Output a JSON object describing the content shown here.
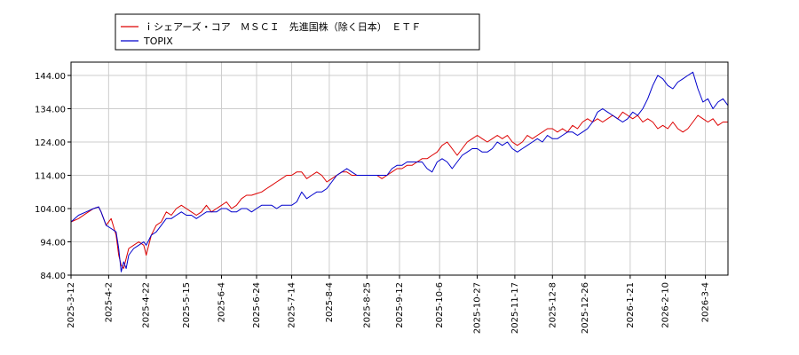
{
  "chart_data": {
    "type": "line",
    "title": "",
    "xlabel": "",
    "ylabel": "",
    "ylim": [
      84,
      148
    ],
    "y_ticks": [
      "84.00",
      "94.00",
      "104.00",
      "114.00",
      "124.00",
      "134.00",
      "144.00"
    ],
    "y_tick_values": [
      84,
      94,
      104,
      114,
      124,
      134,
      144
    ],
    "x_ticks": [
      "2025-3-12",
      "2025-4-2",
      "2025-4-22",
      "2025-5-15",
      "2025-6-4",
      "2025-6-24",
      "2025-7-14",
      "2025-8-4",
      "2025-8-25",
      "2025-9-12",
      "2025-10-6",
      "2025-10-27",
      "2025-11-17",
      "2025-12-8",
      "2025-12-26",
      "2026-1-21",
      "2026-2-10",
      "2026-3-4"
    ],
    "x_tick_positions": [
      0,
      15,
      30,
      46,
      60,
      74,
      88,
      103,
      118,
      131,
      147,
      162,
      177,
      192,
      205,
      223,
      237,
      253
    ],
    "x_max": 262,
    "grid": true,
    "legend_position": "top-left",
    "series": [
      {
        "name": "ｉシェアーズ・コア　ＭＳＣＩ　先進国株（除く日本）　ＥＴＦ",
        "color": "#dd0000",
        "points": [
          [
            0,
            100
          ],
          [
            3,
            101
          ],
          [
            6,
            102.5
          ],
          [
            9,
            104
          ],
          [
            11,
            104.5
          ],
          [
            12,
            103
          ],
          [
            14,
            99
          ],
          [
            16,
            101
          ],
          [
            18,
            96
          ],
          [
            19,
            90
          ],
          [
            20,
            87
          ],
          [
            21,
            86
          ],
          [
            22,
            89
          ],
          [
            23,
            92
          ],
          [
            25,
            93
          ],
          [
            27,
            94
          ],
          [
            29,
            93
          ],
          [
            30,
            90
          ],
          [
            32,
            96
          ],
          [
            34,
            99
          ],
          [
            36,
            100
          ],
          [
            38,
            103
          ],
          [
            40,
            102
          ],
          [
            42,
            104
          ],
          [
            44,
            105
          ],
          [
            46,
            104
          ],
          [
            48,
            103
          ],
          [
            50,
            102
          ],
          [
            52,
            103
          ],
          [
            54,
            105
          ],
          [
            56,
            103
          ],
          [
            58,
            104
          ],
          [
            60,
            105
          ],
          [
            62,
            106
          ],
          [
            64,
            104
          ],
          [
            66,
            105
          ],
          [
            68,
            107
          ],
          [
            70,
            108
          ],
          [
            72,
            108
          ],
          [
            74,
            108.5
          ],
          [
            76,
            109
          ],
          [
            78,
            110
          ],
          [
            80,
            111
          ],
          [
            82,
            112
          ],
          [
            84,
            113
          ],
          [
            86,
            114
          ],
          [
            88,
            114
          ],
          [
            90,
            115
          ],
          [
            92,
            115
          ],
          [
            94,
            113
          ],
          [
            96,
            114
          ],
          [
            98,
            115
          ],
          [
            100,
            114
          ],
          [
            102,
            112
          ],
          [
            104,
            113
          ],
          [
            106,
            114
          ],
          [
            108,
            115
          ],
          [
            110,
            115
          ],
          [
            112,
            114
          ],
          [
            114,
            114
          ],
          [
            116,
            114
          ],
          [
            118,
            114
          ],
          [
            120,
            114
          ],
          [
            122,
            114
          ],
          [
            124,
            113
          ],
          [
            126,
            114
          ],
          [
            128,
            115
          ],
          [
            130,
            116
          ],
          [
            132,
            116
          ],
          [
            134,
            117
          ],
          [
            136,
            117
          ],
          [
            138,
            118
          ],
          [
            140,
            119
          ],
          [
            142,
            119
          ],
          [
            144,
            120
          ],
          [
            146,
            121
          ],
          [
            148,
            123
          ],
          [
            150,
            124
          ],
          [
            152,
            122
          ],
          [
            154,
            120
          ],
          [
            156,
            122
          ],
          [
            158,
            124
          ],
          [
            160,
            125
          ],
          [
            162,
            126
          ],
          [
            164,
            125
          ],
          [
            166,
            124
          ],
          [
            168,
            125
          ],
          [
            170,
            126
          ],
          [
            172,
            125
          ],
          [
            174,
            126
          ],
          [
            176,
            124
          ],
          [
            178,
            123
          ],
          [
            180,
            124
          ],
          [
            182,
            126
          ],
          [
            184,
            125
          ],
          [
            186,
            126
          ],
          [
            188,
            127
          ],
          [
            190,
            128
          ],
          [
            192,
            128
          ],
          [
            194,
            127
          ],
          [
            196,
            128
          ],
          [
            198,
            127
          ],
          [
            200,
            129
          ],
          [
            202,
            128
          ],
          [
            204,
            130
          ],
          [
            206,
            131
          ],
          [
            208,
            130
          ],
          [
            210,
            131
          ],
          [
            212,
            130
          ],
          [
            214,
            131
          ],
          [
            216,
            132
          ],
          [
            218,
            131
          ],
          [
            220,
            133
          ],
          [
            222,
            132
          ],
          [
            224,
            131
          ],
          [
            226,
            132
          ],
          [
            228,
            130
          ],
          [
            230,
            131
          ],
          [
            232,
            130
          ],
          [
            234,
            128
          ],
          [
            236,
            129
          ],
          [
            238,
            128
          ],
          [
            240,
            130
          ],
          [
            242,
            128
          ],
          [
            244,
            127
          ],
          [
            246,
            128
          ],
          [
            248,
            130
          ],
          [
            250,
            132
          ],
          [
            252,
            131
          ],
          [
            254,
            130
          ],
          [
            256,
            131
          ],
          [
            258,
            129
          ],
          [
            260,
            130
          ],
          [
            262,
            130
          ]
        ]
      },
      {
        "name": "TOPIX",
        "color": "#0000cc",
        "points": [
          [
            0,
            100
          ],
          [
            3,
            102
          ],
          [
            6,
            103
          ],
          [
            9,
            104
          ],
          [
            11,
            104.5
          ],
          [
            12,
            103
          ],
          [
            14,
            99
          ],
          [
            16,
            98
          ],
          [
            18,
            97
          ],
          [
            19,
            92
          ],
          [
            20,
            85
          ],
          [
            21,
            88
          ],
          [
            22,
            86
          ],
          [
            23,
            90
          ],
          [
            25,
            92
          ],
          [
            27,
            93
          ],
          [
            29,
            94
          ],
          [
            30,
            93
          ],
          [
            32,
            96
          ],
          [
            34,
            97
          ],
          [
            36,
            99
          ],
          [
            38,
            101
          ],
          [
            40,
            101
          ],
          [
            42,
            102
          ],
          [
            44,
            103
          ],
          [
            46,
            102
          ],
          [
            48,
            102
          ],
          [
            50,
            101
          ],
          [
            52,
            102
          ],
          [
            54,
            103
          ],
          [
            56,
            103
          ],
          [
            58,
            103
          ],
          [
            60,
            104
          ],
          [
            62,
            104
          ],
          [
            64,
            103
          ],
          [
            66,
            103
          ],
          [
            68,
            104
          ],
          [
            70,
            104
          ],
          [
            72,
            103
          ],
          [
            74,
            104
          ],
          [
            76,
            105
          ],
          [
            78,
            105
          ],
          [
            80,
            105
          ],
          [
            82,
            104
          ],
          [
            84,
            105
          ],
          [
            86,
            105
          ],
          [
            88,
            105
          ],
          [
            90,
            106
          ],
          [
            92,
            109
          ],
          [
            94,
            107
          ],
          [
            96,
            108
          ],
          [
            98,
            109
          ],
          [
            100,
            109
          ],
          [
            102,
            110
          ],
          [
            104,
            112
          ],
          [
            106,
            114
          ],
          [
            108,
            115
          ],
          [
            110,
            116
          ],
          [
            112,
            115
          ],
          [
            114,
            114
          ],
          [
            116,
            114
          ],
          [
            118,
            114
          ],
          [
            120,
            114
          ],
          [
            122,
            114
          ],
          [
            124,
            114
          ],
          [
            126,
            114
          ],
          [
            128,
            116
          ],
          [
            130,
            117
          ],
          [
            132,
            117
          ],
          [
            134,
            118
          ],
          [
            136,
            118
          ],
          [
            138,
            118
          ],
          [
            140,
            118
          ],
          [
            142,
            116
          ],
          [
            144,
            115
          ],
          [
            146,
            118
          ],
          [
            148,
            119
          ],
          [
            150,
            118
          ],
          [
            152,
            116
          ],
          [
            154,
            118
          ],
          [
            156,
            120
          ],
          [
            158,
            121
          ],
          [
            160,
            122
          ],
          [
            162,
            122
          ],
          [
            164,
            121
          ],
          [
            166,
            121
          ],
          [
            168,
            122
          ],
          [
            170,
            124
          ],
          [
            172,
            123
          ],
          [
            174,
            124
          ],
          [
            176,
            122
          ],
          [
            178,
            121
          ],
          [
            180,
            122
          ],
          [
            182,
            123
          ],
          [
            184,
            124
          ],
          [
            186,
            125
          ],
          [
            188,
            124
          ],
          [
            190,
            126
          ],
          [
            192,
            125
          ],
          [
            194,
            125
          ],
          [
            196,
            126
          ],
          [
            198,
            127
          ],
          [
            200,
            127
          ],
          [
            202,
            126
          ],
          [
            204,
            127
          ],
          [
            206,
            128
          ],
          [
            208,
            130
          ],
          [
            210,
            133
          ],
          [
            212,
            134
          ],
          [
            214,
            133
          ],
          [
            216,
            132
          ],
          [
            218,
            131
          ],
          [
            220,
            130
          ],
          [
            222,
            131
          ],
          [
            224,
            133
          ],
          [
            226,
            132
          ],
          [
            228,
            134
          ],
          [
            230,
            137
          ],
          [
            232,
            141
          ],
          [
            234,
            144
          ],
          [
            236,
            143
          ],
          [
            238,
            141
          ],
          [
            240,
            140
          ],
          [
            242,
            142
          ],
          [
            244,
            143
          ],
          [
            246,
            144
          ],
          [
            248,
            145
          ],
          [
            250,
            140
          ],
          [
            252,
            136
          ],
          [
            254,
            137
          ],
          [
            256,
            134
          ],
          [
            258,
            136
          ],
          [
            260,
            137
          ],
          [
            262,
            135
          ]
        ]
      }
    ]
  }
}
